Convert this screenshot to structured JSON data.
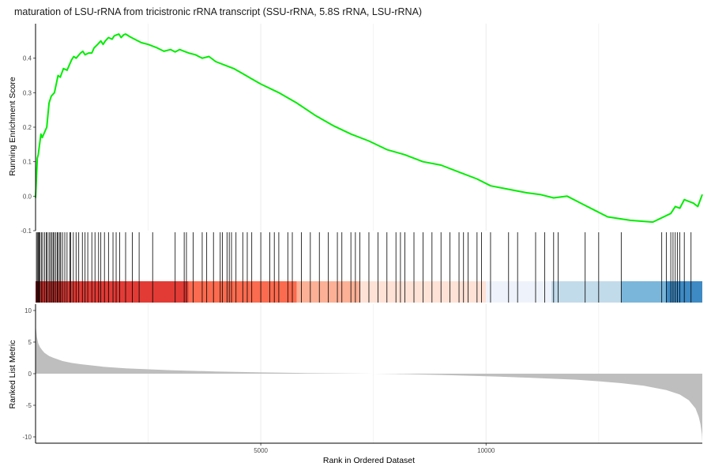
{
  "chart_data": [
    {
      "type": "line",
      "panel": "running-enrichment-score",
      "title": "maturation of LSU-rRNA from tricistronic rRNA transcript (SSU-rRNA, 5.8S rRNA, LSU-rRNA)",
      "ylabel": "Running Enrichment Score",
      "xlim": [
        1,
        14800
      ],
      "ylim": [
        -0.1,
        0.5
      ],
      "yticks": [
        -0.1,
        0.0,
        0.1,
        0.2,
        0.3,
        0.4
      ],
      "ytick_labels": [
        "-0.1",
        "0.0",
        "0.1",
        "0.2",
        "0.3",
        "0.4"
      ],
      "grid": true,
      "series": [
        {
          "color": "#00ee00",
          "x": [
            1,
            40,
            60,
            120,
            150,
            250,
            300,
            350,
            420,
            500,
            550,
            620,
            700,
            800,
            850,
            900,
            1000,
            1050,
            1100,
            1180,
            1250,
            1300,
            1380,
            1450,
            1500,
            1550,
            1620,
            1700,
            1750,
            1850,
            1900,
            1960,
            2000,
            2100,
            2200,
            2350,
            2500,
            2700,
            2850,
            3000,
            3100,
            3200,
            3300,
            3400,
            3550,
            3700,
            3850,
            4000,
            4200,
            4400,
            4600,
            4800,
            5000,
            5400,
            5800,
            6200,
            6600,
            7000,
            7400,
            7800,
            8200,
            8600,
            9000,
            9400,
            9800,
            10100,
            10500,
            10900,
            11200,
            11500,
            11800,
            12100,
            12400,
            12700,
            13200,
            13700,
            14100,
            14200,
            14300,
            14400,
            14500,
            14600,
            14700,
            14800
          ],
          "y": [
            -0.005,
            0.11,
            0.12,
            0.18,
            0.17,
            0.2,
            0.27,
            0.29,
            0.3,
            0.35,
            0.345,
            0.37,
            0.365,
            0.395,
            0.405,
            0.4,
            0.415,
            0.42,
            0.41,
            0.415,
            0.415,
            0.43,
            0.44,
            0.45,
            0.44,
            0.45,
            0.46,
            0.455,
            0.465,
            0.47,
            0.46,
            0.468,
            0.47,
            0.462,
            0.455,
            0.445,
            0.44,
            0.43,
            0.42,
            0.425,
            0.418,
            0.425,
            0.42,
            0.415,
            0.41,
            0.4,
            0.405,
            0.39,
            0.38,
            0.37,
            0.355,
            0.34,
            0.325,
            0.3,
            0.27,
            0.235,
            0.205,
            0.18,
            0.16,
            0.135,
            0.12,
            0.1,
            0.09,
            0.07,
            0.05,
            0.03,
            0.02,
            0.01,
            0.005,
            -0.005,
            0.0,
            -0.02,
            -0.04,
            -0.06,
            -0.07,
            -0.075,
            -0.05,
            -0.03,
            -0.035,
            -0.01,
            -0.015,
            -0.02,
            -0.03,
            0.005
          ]
        }
      ]
    },
    {
      "type": "rug",
      "panel": "gene-set-hits",
      "xlim": [
        1,
        14800
      ],
      "hits": [
        20,
        40,
        60,
        80,
        100,
        130,
        160,
        200,
        240,
        260,
        300,
        330,
        360,
        390,
        410,
        450,
        480,
        500,
        540,
        560,
        600,
        650,
        700,
        760,
        780,
        840,
        900,
        960,
        1040,
        1100,
        1160,
        1250,
        1320,
        1400,
        1450,
        1530,
        1620,
        1720,
        1790,
        1870,
        2000,
        2150,
        2300,
        2600,
        3100,
        3300,
        3350,
        3500,
        3700,
        3800,
        3950,
        4100,
        4150,
        4250,
        4300,
        4350,
        4450,
        4600,
        4700,
        4800,
        5000,
        5200,
        5300,
        5400,
        5600,
        5700,
        5900,
        6100,
        6300,
        6500,
        6700,
        6800,
        7000,
        7100,
        7200,
        7400,
        7600,
        7800,
        8000,
        8100,
        8200,
        8400,
        8600,
        8800,
        9000,
        9200,
        9400,
        9500,
        9600,
        9800,
        9900,
        10100,
        10500,
        10700,
        11100,
        11300,
        11500,
        11600,
        12200,
        12500,
        13000,
        13900,
        14000,
        14100,
        14150,
        14200,
        14250,
        14300,
        14400,
        14550
      ]
    },
    {
      "type": "heatmap",
      "panel": "rank-color-band",
      "xlim": [
        1,
        14800
      ],
      "segments": [
        {
          "from": 1,
          "to": 3400,
          "color": "#e23b36"
        },
        {
          "from": 3400,
          "to": 5800,
          "color": "#fb6b4f"
        },
        {
          "from": 5800,
          "to": 7200,
          "color": "#fcb096"
        },
        {
          "from": 7200,
          "to": 10000,
          "color": "#fee2d6"
        },
        {
          "from": 10000,
          "to": 11450,
          "color": "#eef3fb"
        },
        {
          "from": 11450,
          "to": 13000,
          "color": "#c2dbea"
        },
        {
          "from": 13000,
          "to": 14000,
          "color": "#7ab6da"
        },
        {
          "from": 14000,
          "to": 14800,
          "color": "#3e8ac4"
        }
      ],
      "edge_color": "#a6111a"
    },
    {
      "type": "area",
      "panel": "ranked-list-metric",
      "ylabel": "Ranked List Metric",
      "xlabel": "Rank in Ordered Dataset",
      "xlim": [
        1,
        14800
      ],
      "ylim": [
        -11,
        11
      ],
      "yticks": [
        -10,
        -5,
        0,
        5,
        10
      ],
      "ytick_labels": [
        "-10",
        "-5",
        "0",
        "5",
        "10"
      ],
      "xticks": [
        5000,
        10000
      ],
      "xtick_labels": [
        "5000",
        "10000"
      ],
      "grid": true,
      "color": "#bebebe",
      "x": [
        1,
        30,
        60,
        100,
        150,
        200,
        300,
        400,
        600,
        800,
        1000,
        1500,
        2000,
        3000,
        4000,
        5000,
        6000,
        7000,
        7500,
        8000,
        9000,
        10000,
        11000,
        12000,
        12500,
        13000,
        13500,
        14000,
        14300,
        14500,
        14650,
        14720,
        14760,
        14790,
        14800
      ],
      "y": [
        7.8,
        5.8,
        4.8,
        4.2,
        3.7,
        3.3,
        2.8,
        2.5,
        2.0,
        1.7,
        1.5,
        1.1,
        0.85,
        0.55,
        0.35,
        0.2,
        0.1,
        0.02,
        0.0,
        -0.05,
        -0.2,
        -0.4,
        -0.65,
        -0.95,
        -1.2,
        -1.5,
        -1.9,
        -2.6,
        -3.3,
        -4.2,
        -5.5,
        -6.8,
        -8.0,
        -9.5,
        -10.8
      ]
    }
  ]
}
